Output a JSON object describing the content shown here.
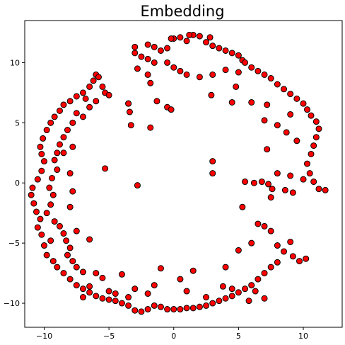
{
  "chart_data": {
    "type": "scatter",
    "title": "Embedding",
    "xlabel": "",
    "ylabel": "",
    "xlim": [
      -11.5,
      13.0
    ],
    "ylim": [
      -12.0,
      13.5
    ],
    "xticks": [
      -10,
      -5,
      0,
      5,
      10
    ],
    "yticks": [
      -10,
      -5,
      0,
      5,
      10
    ],
    "grid": false,
    "marker_fill": "#ff0000",
    "marker_edge": "#000000",
    "series": [
      {
        "values": [
          [
            -2.0,
            11.5
          ],
          [
            -1.5,
            11.3
          ],
          [
            -1.0,
            11.0
          ],
          [
            -0.5,
            11.2
          ],
          [
            0.0,
            12.0
          ],
          [
            0.5,
            12.1
          ],
          [
            1.0,
            11.8
          ],
          [
            1.5,
            12.3
          ],
          [
            2.0,
            12.2
          ],
          [
            2.5,
            11.7
          ],
          [
            3.0,
            11.4
          ],
          [
            3.5,
            11.2
          ],
          [
            4.0,
            11.0
          ],
          [
            4.5,
            10.8
          ],
          [
            5.0,
            10.6
          ],
          [
            5.3,
            10.2
          ],
          [
            -3.0,
            11.3
          ],
          [
            -3.0,
            10.8
          ],
          [
            -2.5,
            10.5
          ],
          [
            -2.0,
            10.3
          ],
          [
            -1.5,
            10.0
          ],
          [
            -0.5,
            10.0
          ],
          [
            0.0,
            9.6
          ],
          [
            0.5,
            9.3
          ],
          [
            1.0,
            9.0
          ],
          [
            2.0,
            8.8
          ],
          [
            3.0,
            9.0
          ],
          [
            4.0,
            9.4
          ],
          [
            5.0,
            9.2
          ],
          [
            -0.2,
            12.0
          ],
          [
            1.2,
            12.3
          ],
          [
            2.8,
            12.1
          ],
          [
            -2.8,
            9.5
          ],
          [
            -1.8,
            8.3
          ],
          [
            -2.0,
            9.0
          ],
          [
            -1.3,
            6.8
          ],
          [
            -0.5,
            6.3
          ],
          [
            -0.2,
            6.1
          ],
          [
            -3.5,
            6.6
          ],
          [
            5.5,
            10.0
          ],
          [
            6.0,
            9.6
          ],
          [
            6.5,
            9.3
          ],
          [
            7.0,
            9.0
          ],
          [
            7.5,
            8.7
          ],
          [
            8.0,
            8.2
          ],
          [
            8.5,
            7.8
          ],
          [
            9.0,
            7.4
          ],
          [
            9.5,
            7.0
          ],
          [
            10.0,
            6.6
          ],
          [
            10.3,
            6.1
          ],
          [
            10.6,
            5.6
          ],
          [
            11.0,
            5.1
          ],
          [
            11.2,
            4.5
          ],
          [
            11.0,
            3.8
          ],
          [
            10.8,
            3.1
          ],
          [
            10.6,
            2.4
          ],
          [
            10.3,
            1.6
          ],
          [
            10.5,
            0.8
          ],
          [
            10.8,
            0.1
          ],
          [
            11.2,
            -0.5
          ],
          [
            11.7,
            -0.6
          ],
          [
            10.0,
            0.3
          ],
          [
            9.5,
            3.5
          ],
          [
            8.7,
            4.2
          ],
          [
            8.0,
            4.8
          ],
          [
            9.0,
            5.7
          ],
          [
            6.0,
            6.7
          ],
          [
            7.2,
            6.5
          ],
          [
            7.0,
            5.2
          ],
          [
            7.2,
            2.8
          ],
          [
            9.0,
            0.6
          ],
          [
            9.2,
            -0.8
          ],
          [
            8.0,
            0.8
          ],
          [
            4.5,
            6.7
          ],
          [
            4.8,
            8.0
          ],
          [
            5.5,
            0.1
          ],
          [
            6.2,
            0.0
          ],
          [
            6.8,
            0.1
          ],
          [
            7.3,
            -0.1
          ],
          [
            7.5,
            -1.2
          ],
          [
            5.3,
            -2.0
          ],
          [
            6.5,
            -3.4
          ],
          [
            7.0,
            -3.6
          ],
          [
            7.5,
            -4.0
          ],
          [
            6.0,
            -5.0
          ],
          [
            5.0,
            -5.6
          ],
          [
            4.0,
            -7.0
          ],
          [
            3.0,
            1.8
          ],
          [
            3.0,
            0.8
          ],
          [
            2.9,
            7.3
          ],
          [
            7.6,
            -0.5
          ],
          [
            8.6,
            -0.6
          ],
          [
            8.0,
            -5.2
          ],
          [
            8.5,
            -5.7
          ],
          [
            9.2,
            -6.1
          ],
          [
            9.7,
            -6.5
          ],
          [
            10.2,
            -6.3
          ],
          [
            9.0,
            -4.9
          ],
          [
            8.0,
            -6.6
          ],
          [
            7.5,
            -7.0
          ],
          [
            7.0,
            -7.5
          ],
          [
            6.5,
            -8.0
          ],
          [
            6.0,
            -8.5
          ],
          [
            5.5,
            -8.8
          ],
          [
            5.0,
            -9.1
          ],
          [
            4.5,
            -9.4
          ],
          [
            4.0,
            -9.6
          ],
          [
            3.5,
            -9.8
          ],
          [
            3.0,
            -10.0
          ],
          [
            2.5,
            -10.2
          ],
          [
            2.0,
            -10.3
          ],
          [
            1.5,
            -10.4
          ],
          [
            1.0,
            -10.4
          ],
          [
            0.5,
            -10.5
          ],
          [
            0.0,
            -10.5
          ],
          [
            -0.5,
            -10.5
          ],
          [
            -1.0,
            -10.3
          ],
          [
            -1.5,
            -10.2
          ],
          [
            -2.0,
            -10.5
          ],
          [
            -2.5,
            -10.7
          ],
          [
            -3.0,
            -10.6
          ],
          [
            -3.5,
            -10.2
          ],
          [
            -4.0,
            -10.0
          ],
          [
            -4.5,
            -9.8
          ],
          [
            -5.0,
            -9.7
          ],
          [
            -5.5,
            -9.6
          ],
          [
            -6.0,
            -9.4
          ],
          [
            -6.5,
            -9.1
          ],
          [
            -7.0,
            -8.8
          ],
          [
            -7.5,
            -8.5
          ],
          [
            -8.0,
            -8.0
          ],
          [
            -8.5,
            -7.5
          ],
          [
            -9.0,
            -7.0
          ],
          [
            -6.0,
            -7.5
          ],
          [
            -5.5,
            -7.9
          ],
          [
            -4.0,
            -7.6
          ],
          [
            -3.0,
            -8.8
          ],
          [
            -1.0,
            -7.1
          ],
          [
            1.5,
            -7.3
          ],
          [
            -2.0,
            -9.2
          ],
          [
            -1.5,
            -8.5
          ],
          [
            0.5,
            -8.0
          ],
          [
            -6.5,
            -8.6
          ],
          [
            -5.0,
            -9.0
          ],
          [
            -4.5,
            -9.2
          ],
          [
            3.8,
            -8.6
          ],
          [
            4.5,
            -8.8
          ],
          [
            6.3,
            -9.0
          ],
          [
            7.0,
            -9.6
          ],
          [
            5.8,
            -9.8
          ],
          [
            2.5,
            -9.5
          ],
          [
            1.0,
            -9.0
          ],
          [
            -3.5,
            -9.5
          ],
          [
            -7.0,
            -9.5
          ],
          [
            -9.3,
            -6.5
          ],
          [
            -9.8,
            -6.0
          ],
          [
            -10.0,
            -5.2
          ],
          [
            -9.5,
            -4.8
          ],
          [
            -10.2,
            -4.3
          ],
          [
            -10.5,
            -3.7
          ],
          [
            -10.3,
            -3.0
          ],
          [
            -10.6,
            -2.4
          ],
          [
            -10.8,
            -1.7
          ],
          [
            -11.0,
            -1.0
          ],
          [
            -10.9,
            -0.4
          ],
          [
            -10.5,
            0.3
          ],
          [
            -10.2,
            1.0
          ],
          [
            -10.0,
            1.8
          ],
          [
            -10.2,
            2.4
          ],
          [
            -10.3,
            3.0
          ],
          [
            -10.1,
            3.7
          ],
          [
            -9.8,
            4.4
          ],
          [
            -9.5,
            5.0
          ],
          [
            -9.2,
            5.5
          ],
          [
            -8.8,
            6.0
          ],
          [
            -8.5,
            6.5
          ],
          [
            -8.0,
            6.8
          ],
          [
            -7.5,
            7.2
          ],
          [
            -7.0,
            7.5
          ],
          [
            -6.5,
            8.0
          ],
          [
            -6.2,
            8.5
          ],
          [
            -6.0,
            9.0
          ],
          [
            -5.8,
            8.8
          ],
          [
            -5.5,
            8.0
          ],
          [
            -5.3,
            7.5
          ],
          [
            -5.0,
            7.3
          ],
          [
            -6.0,
            6.8
          ],
          [
            -6.5,
            6.3
          ],
          [
            -7.0,
            5.5
          ],
          [
            -7.8,
            5.0
          ],
          [
            -8.2,
            4.4
          ],
          [
            -8.5,
            3.8
          ],
          [
            -8.8,
            3.2
          ],
          [
            -9.0,
            2.5
          ],
          [
            -9.2,
            1.9
          ],
          [
            -9.0,
            1.1
          ],
          [
            -9.4,
            0.4
          ],
          [
            -9.6,
            -0.4
          ],
          [
            -9.3,
            -1.0
          ],
          [
            -9.5,
            -1.8
          ],
          [
            -9.8,
            -2.5
          ],
          [
            -9.2,
            -3.2
          ],
          [
            -8.8,
            -3.6
          ],
          [
            -8.5,
            -4.2
          ],
          [
            -8.3,
            -4.8
          ],
          [
            -8.0,
            -5.4
          ],
          [
            -8.2,
            -6.0
          ],
          [
            -7.8,
            -6.5
          ],
          [
            -7.5,
            -7.0
          ],
          [
            -7.0,
            -7.4
          ],
          [
            -6.5,
            -4.7
          ],
          [
            -7.5,
            -4.0
          ],
          [
            -8.0,
            -2.0
          ],
          [
            -7.8,
            -0.7
          ],
          [
            -8.0,
            0.8
          ],
          [
            -8.5,
            2.5
          ],
          [
            -7.8,
            3.0
          ],
          [
            -7.5,
            5.8
          ],
          [
            -6.8,
            7.0
          ],
          [
            -5.3,
            1.2
          ],
          [
            -3.3,
            4.8
          ],
          [
            -3.4,
            5.9
          ],
          [
            -3.5,
            6.6
          ],
          [
            -2.8,
            -0.2
          ],
          [
            -1.8,
            4.6
          ]
        ]
      }
    ]
  }
}
